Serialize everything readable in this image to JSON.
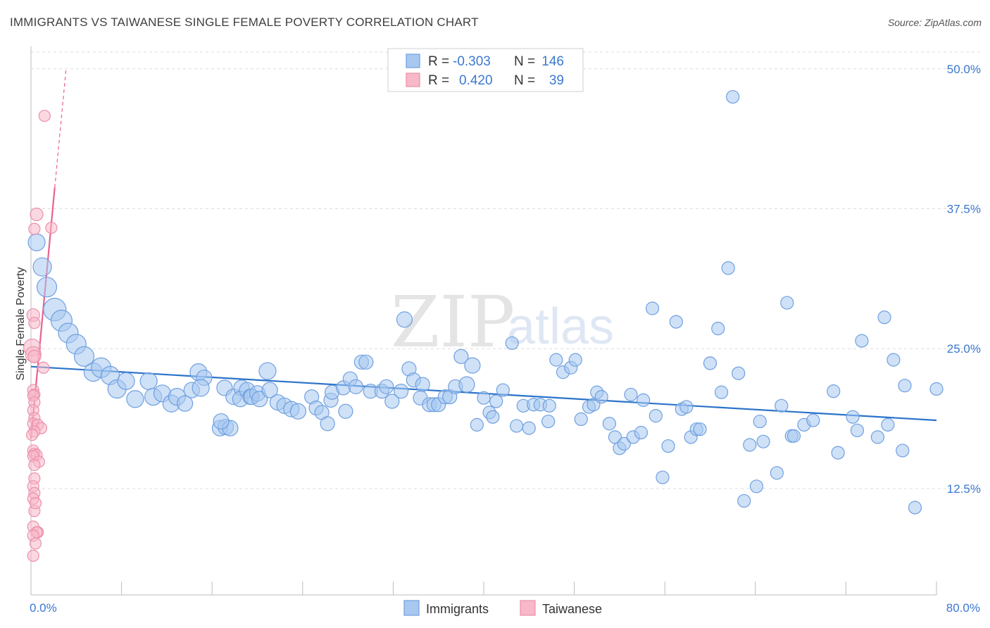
{
  "title": "IMMIGRANTS VS TAIWANESE SINGLE FEMALE POVERTY CORRELATION CHART",
  "source": "Source: ZipAtlas.com",
  "watermark": {
    "zip": "ZIP",
    "atlas": "atlas"
  },
  "colors": {
    "immigrants_fill": "#a8c8f0",
    "immigrants_stroke": "#6fa0e0",
    "immigrants_line": "#2b73c9",
    "taiwanese_fill": "#f7b8c8",
    "taiwanese_stroke": "#ec8fab",
    "taiwanese_line": "#e8628f",
    "axis_label": "#3b78d0",
    "grid": "#dcdcdc"
  },
  "legend": {
    "rows": [
      {
        "r_label": "R =",
        "r_value": "-0.303",
        "n_label": "N =",
        "n_value": "146"
      },
      {
        "r_label": "R =",
        "r_value": "0.420",
        "n_label": "N =",
        "n_value": "39"
      }
    ]
  },
  "bottom_legend": {
    "immigrants": "Immigrants",
    "taiwanese": "Taiwanese"
  },
  "chart_data": {
    "type": "scatter",
    "title": "IMMIGRANTS VS TAIWANESE SINGLE FEMALE POVERTY CORRELATION CHART",
    "xlabel": "",
    "ylabel": "Single Female Poverty",
    "xlim": [
      0,
      80
    ],
    "ylim": [
      3,
      52
    ],
    "x_tick_labels": [
      "0.0%",
      "80.0%"
    ],
    "y_ticks": [
      12.5,
      25.0,
      37.5,
      50.0
    ],
    "y_tick_labels": [
      "12.5%",
      "25.0%",
      "37.5%",
      "50.0%"
    ],
    "grid": true,
    "legend_position": "top-center",
    "series": [
      {
        "name": "Immigrants",
        "r": -0.303,
        "n": 146,
        "trend": {
          "x": [
            0,
            80
          ],
          "y": [
            23.4,
            18.6
          ]
        },
        "points": [
          [
            0.5,
            34.5,
            12
          ],
          [
            1.0,
            32.3,
            13
          ],
          [
            1.4,
            30.5,
            14
          ],
          [
            2.1,
            28.5,
            16
          ],
          [
            2.7,
            27.5,
            15
          ],
          [
            3.3,
            26.4,
            14
          ],
          [
            4.0,
            25.4,
            14
          ],
          [
            4.7,
            24.3,
            14
          ],
          [
            5.5,
            22.9,
            13
          ],
          [
            6.2,
            23.3,
            14
          ],
          [
            7.0,
            22.6,
            13
          ],
          [
            7.6,
            21.4,
            13
          ],
          [
            8.4,
            22.1,
            12
          ],
          [
            9.2,
            20.5,
            12
          ],
          [
            10.4,
            22.1,
            12
          ],
          [
            10.8,
            20.7,
            12
          ],
          [
            11.6,
            21.0,
            12
          ],
          [
            12.4,
            20.1,
            12
          ],
          [
            12.9,
            20.7,
            12
          ],
          [
            13.6,
            20.1,
            11
          ],
          [
            14.2,
            21.3,
            11
          ],
          [
            14.8,
            22.9,
            12
          ],
          [
            15.3,
            22.4,
            11
          ],
          [
            15.0,
            21.5,
            12
          ],
          [
            16.7,
            17.9,
            11
          ],
          [
            17.2,
            18.0,
            11
          ],
          [
            17.6,
            17.9,
            11
          ],
          [
            16.8,
            18.5,
            11
          ],
          [
            17.1,
            21.5,
            11
          ],
          [
            17.9,
            20.7,
            11
          ],
          [
            18.6,
            21.5,
            11
          ],
          [
            18.5,
            20.5,
            11
          ],
          [
            19.1,
            21.3,
            11
          ],
          [
            19.4,
            20.7,
            11
          ],
          [
            19.5,
            20.7,
            11
          ],
          [
            20.0,
            21.0,
            11
          ],
          [
            20.2,
            20.5,
            11
          ],
          [
            20.9,
            23.0,
            12
          ],
          [
            21.1,
            21.3,
            11
          ],
          [
            21.8,
            20.2,
            11
          ],
          [
            22.4,
            19.9,
            11
          ],
          [
            23.0,
            19.6,
            11
          ],
          [
            23.6,
            19.4,
            11
          ],
          [
            24.8,
            20.7,
            10
          ],
          [
            25.2,
            19.7,
            10
          ],
          [
            25.7,
            19.3,
            10
          ],
          [
            26.2,
            18.3,
            10
          ],
          [
            26.5,
            20.4,
            10
          ],
          [
            26.6,
            21.1,
            10
          ],
          [
            27.6,
            21.5,
            10
          ],
          [
            27.8,
            19.4,
            10
          ],
          [
            28.2,
            22.3,
            10
          ],
          [
            28.7,
            21.6,
            10
          ],
          [
            29.2,
            23.8,
            10
          ],
          [
            29.6,
            23.8,
            10
          ],
          [
            30.0,
            21.2,
            10
          ],
          [
            31.0,
            21.2,
            10
          ],
          [
            31.4,
            21.6,
            10
          ],
          [
            31.9,
            20.3,
            10
          ],
          [
            32.7,
            21.2,
            10
          ],
          [
            33.0,
            27.6,
            11
          ],
          [
            33.4,
            23.2,
            10
          ],
          [
            33.8,
            22.2,
            10
          ],
          [
            34.4,
            20.6,
            10
          ],
          [
            34.6,
            21.8,
            10
          ],
          [
            35.2,
            20.0,
            10
          ],
          [
            35.6,
            20.0,
            10
          ],
          [
            36.0,
            20.0,
            10
          ],
          [
            36.6,
            20.7,
            10
          ],
          [
            37.0,
            20.7,
            10
          ],
          [
            37.5,
            21.6,
            10
          ],
          [
            38.0,
            24.3,
            10
          ],
          [
            38.5,
            21.8,
            11
          ],
          [
            39.0,
            23.5,
            11
          ],
          [
            39.4,
            18.2,
            9
          ],
          [
            40.0,
            20.6,
            9
          ],
          [
            40.5,
            19.3,
            9
          ],
          [
            40.8,
            18.9,
            9
          ],
          [
            41.1,
            20.3,
            9
          ],
          [
            41.7,
            21.3,
            9
          ],
          [
            42.5,
            25.5,
            9
          ],
          [
            42.9,
            18.1,
            9
          ],
          [
            43.5,
            19.9,
            9
          ],
          [
            44.0,
            17.9,
            9
          ],
          [
            44.4,
            20.0,
            9
          ],
          [
            45.0,
            20.0,
            9
          ],
          [
            45.7,
            18.5,
            9
          ],
          [
            45.8,
            19.9,
            9
          ],
          [
            46.4,
            24.0,
            9
          ],
          [
            47.0,
            22.9,
            9
          ],
          [
            47.7,
            23.3,
            9
          ],
          [
            48.1,
            24.0,
            9
          ],
          [
            48.6,
            18.7,
            9
          ],
          [
            49.3,
            19.8,
            9
          ],
          [
            49.7,
            20.0,
            9
          ],
          [
            50.0,
            21.1,
            9
          ],
          [
            50.4,
            20.7,
            9
          ],
          [
            51.1,
            18.3,
            9
          ],
          [
            51.6,
            17.1,
            9
          ],
          [
            52.0,
            16.1,
            9
          ],
          [
            52.4,
            16.5,
            9
          ],
          [
            53.0,
            20.9,
            9
          ],
          [
            53.2,
            17.1,
            9
          ],
          [
            53.9,
            17.5,
            9
          ],
          [
            54.1,
            20.4,
            9
          ],
          [
            54.9,
            28.6,
            9
          ],
          [
            55.2,
            19.0,
            9
          ],
          [
            55.8,
            13.5,
            9
          ],
          [
            56.3,
            16.3,
            9
          ],
          [
            57.0,
            27.4,
            9
          ],
          [
            57.5,
            19.6,
            9
          ],
          [
            57.9,
            19.8,
            9
          ],
          [
            58.3,
            17.1,
            9
          ],
          [
            58.8,
            17.8,
            9
          ],
          [
            59.1,
            17.8,
            9
          ],
          [
            60.0,
            23.7,
            9
          ],
          [
            60.7,
            26.8,
            9
          ],
          [
            61.0,
            21.1,
            9
          ],
          [
            61.6,
            32.2,
            9
          ],
          [
            62.0,
            47.5,
            9
          ],
          [
            62.5,
            22.8,
            9
          ],
          [
            63.0,
            11.4,
            9
          ],
          [
            63.5,
            16.4,
            9
          ],
          [
            64.1,
            12.7,
            9
          ],
          [
            64.4,
            18.5,
            9
          ],
          [
            64.7,
            16.7,
            9
          ],
          [
            65.9,
            13.9,
            9
          ],
          [
            66.3,
            19.9,
            9
          ],
          [
            66.8,
            29.1,
            9
          ],
          [
            67.2,
            17.2,
            9
          ],
          [
            67.4,
            17.2,
            9
          ],
          [
            68.3,
            18.2,
            9
          ],
          [
            69.1,
            18.6,
            9
          ],
          [
            70.9,
            21.2,
            9
          ],
          [
            71.3,
            15.7,
            9
          ],
          [
            72.6,
            18.9,
            9
          ],
          [
            73.0,
            17.7,
            9
          ],
          [
            73.4,
            25.7,
            9
          ],
          [
            74.8,
            17.1,
            9
          ],
          [
            75.4,
            27.8,
            9
          ],
          [
            75.7,
            18.2,
            9
          ],
          [
            76.2,
            24.0,
            9
          ],
          [
            77.0,
            15.9,
            9
          ],
          [
            77.2,
            21.7,
            9
          ],
          [
            78.1,
            10.8,
            9
          ],
          [
            80.0,
            21.4,
            9
          ]
        ]
      },
      {
        "name": "Taiwanese",
        "r": 0.42,
        "n": 39,
        "trend": {
          "x": [
            0,
            2.1
          ],
          "y": [
            17.0,
            39.4
          ],
          "dashed_extension": {
            "x": [
              2.1,
              3.1
            ],
            "y": [
              39.4,
              50.0
            ]
          }
        },
        "points": [
          [
            1.2,
            45.8,
            8
          ],
          [
            0.5,
            37.0,
            9
          ],
          [
            1.8,
            35.8,
            8
          ],
          [
            0.3,
            35.7,
            8
          ],
          [
            0.2,
            28.0,
            9
          ],
          [
            0.3,
            27.3,
            8
          ],
          [
            0.1,
            25.1,
            12
          ],
          [
            0.2,
            24.5,
            11
          ],
          [
            0.3,
            24.3,
            9
          ],
          [
            1.1,
            23.3,
            8
          ],
          [
            0.2,
            21.3,
            8
          ],
          [
            0.3,
            20.9,
            8
          ],
          [
            0.2,
            20.8,
            8
          ],
          [
            0.3,
            20.2,
            8
          ],
          [
            0.2,
            19.5,
            8
          ],
          [
            0.3,
            18.8,
            8
          ],
          [
            0.2,
            18.3,
            8
          ],
          [
            0.6,
            18.2,
            8
          ],
          [
            0.9,
            17.9,
            8
          ],
          [
            0.3,
            17.6,
            8
          ],
          [
            0.1,
            17.3,
            8
          ],
          [
            0.2,
            15.9,
            8
          ],
          [
            0.3,
            15.6,
            8
          ],
          [
            0.5,
            15.5,
            8
          ],
          [
            0.2,
            15.4,
            8
          ],
          [
            0.7,
            14.9,
            8
          ],
          [
            0.3,
            13.4,
            8
          ],
          [
            0.2,
            12.7,
            8
          ],
          [
            0.3,
            12.1,
            8
          ],
          [
            0.2,
            11.6,
            8
          ],
          [
            0.3,
            10.5,
            8
          ],
          [
            0.2,
            9.1,
            8
          ],
          [
            0.6,
            8.6,
            8
          ],
          [
            0.5,
            8.6,
            8
          ],
          [
            0.2,
            8.3,
            8
          ],
          [
            0.4,
            7.6,
            8
          ],
          [
            0.2,
            6.5,
            8
          ],
          [
            0.3,
            14.6,
            8
          ],
          [
            0.4,
            11.2,
            8
          ]
        ]
      }
    ]
  }
}
